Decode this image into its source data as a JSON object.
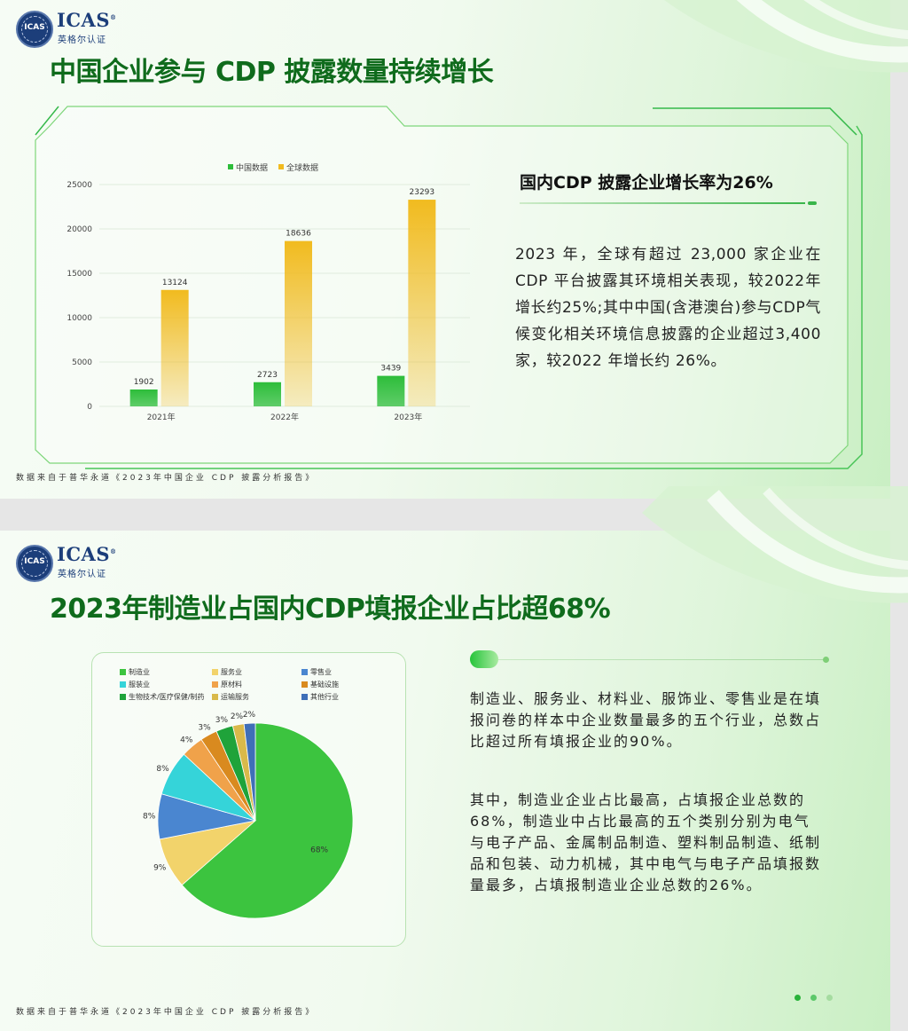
{
  "logo": {
    "brand": "ICAS",
    "reg": "®",
    "sub": "英格尔认证",
    "seal_text": "ICAS"
  },
  "slide1": {
    "title": "中国企业参与 CDP 披露数量持续增长",
    "panel_title": "国内CDP 披露企业增长率为26%",
    "panel_text": "2023 年，全球有超过 23,000 家企业在 CDP 平台披露其环境相关表现，较2022年增长约25%;其中中国(含港澳台)参与CDP气候变化相关环境信息披露的企业超过3,400家，较2022 年增长约 26%。",
    "footer": "数据来自于普华永道《2023年中国企业 CDP 披露分析报告》"
  },
  "slide2": {
    "title": "2023年制造业占国内CDP填报企业占比超68%",
    "para1": "制造业、服务业、材料业、服饰业、零售业是在填报问卷的样本中企业数量最多的五个行业，总数占比超过所有填报企业的90%。",
    "para2": "其中，制造业企业占比最高，占填报企业总数的68%，制造业中占比最高的五个类别分别为电气与电子产品、金属制品制造、塑料制品制造、纸制品和包装、动力机械，其中电气与电子产品填报数量最多，占填报制造业企业总数的26%。",
    "footer": "数据来自于普华永道《2023年中国企业 CDP 披露分析报告》"
  },
  "chart_data": [
    {
      "type": "bar",
      "categories": [
        "2021年",
        "2022年",
        "2023年"
      ],
      "series": [
        {
          "name": "中国数据",
          "values": [
            1902,
            2723,
            3439
          ],
          "color": "#2dbd3a"
        },
        {
          "name": "全球数据",
          "values": [
            13124,
            18636,
            23293
          ],
          "color": "#f1bb1f"
        }
      ],
      "ylim": [
        0,
        25000
      ],
      "yticks": [
        0,
        5000,
        10000,
        15000,
        20000,
        25000
      ],
      "legend": "top-center",
      "grid": true
    },
    {
      "type": "pie",
      "legend": "top",
      "slices": [
        {
          "name": "制造业",
          "value": 68,
          "label": "68%",
          "color": "#3cc43f"
        },
        {
          "name": "服务业",
          "value": 9,
          "label": "9%",
          "color": "#f2d36b"
        },
        {
          "name": "零售业",
          "value": 8,
          "label": "8%",
          "color": "#4a86d0"
        },
        {
          "name": "服装业",
          "value": 8,
          "label": "8%",
          "color": "#35d4d9"
        },
        {
          "name": "原材料",
          "value": 4,
          "label": "4%",
          "color": "#f0a24a"
        },
        {
          "name": "基础设施",
          "value": 3,
          "label": "3%",
          "color": "#d98a1f"
        },
        {
          "name": "生物技术/医疗保健/制药",
          "value": 3,
          "label": "3%",
          "color": "#1fa33a"
        },
        {
          "name": "运输服务",
          "value": 2,
          "label": "2%",
          "color": "#d9b94a"
        },
        {
          "name": "其他行业",
          "value": 2,
          "label": "2%",
          "color": "#3f6fb8"
        }
      ]
    }
  ]
}
